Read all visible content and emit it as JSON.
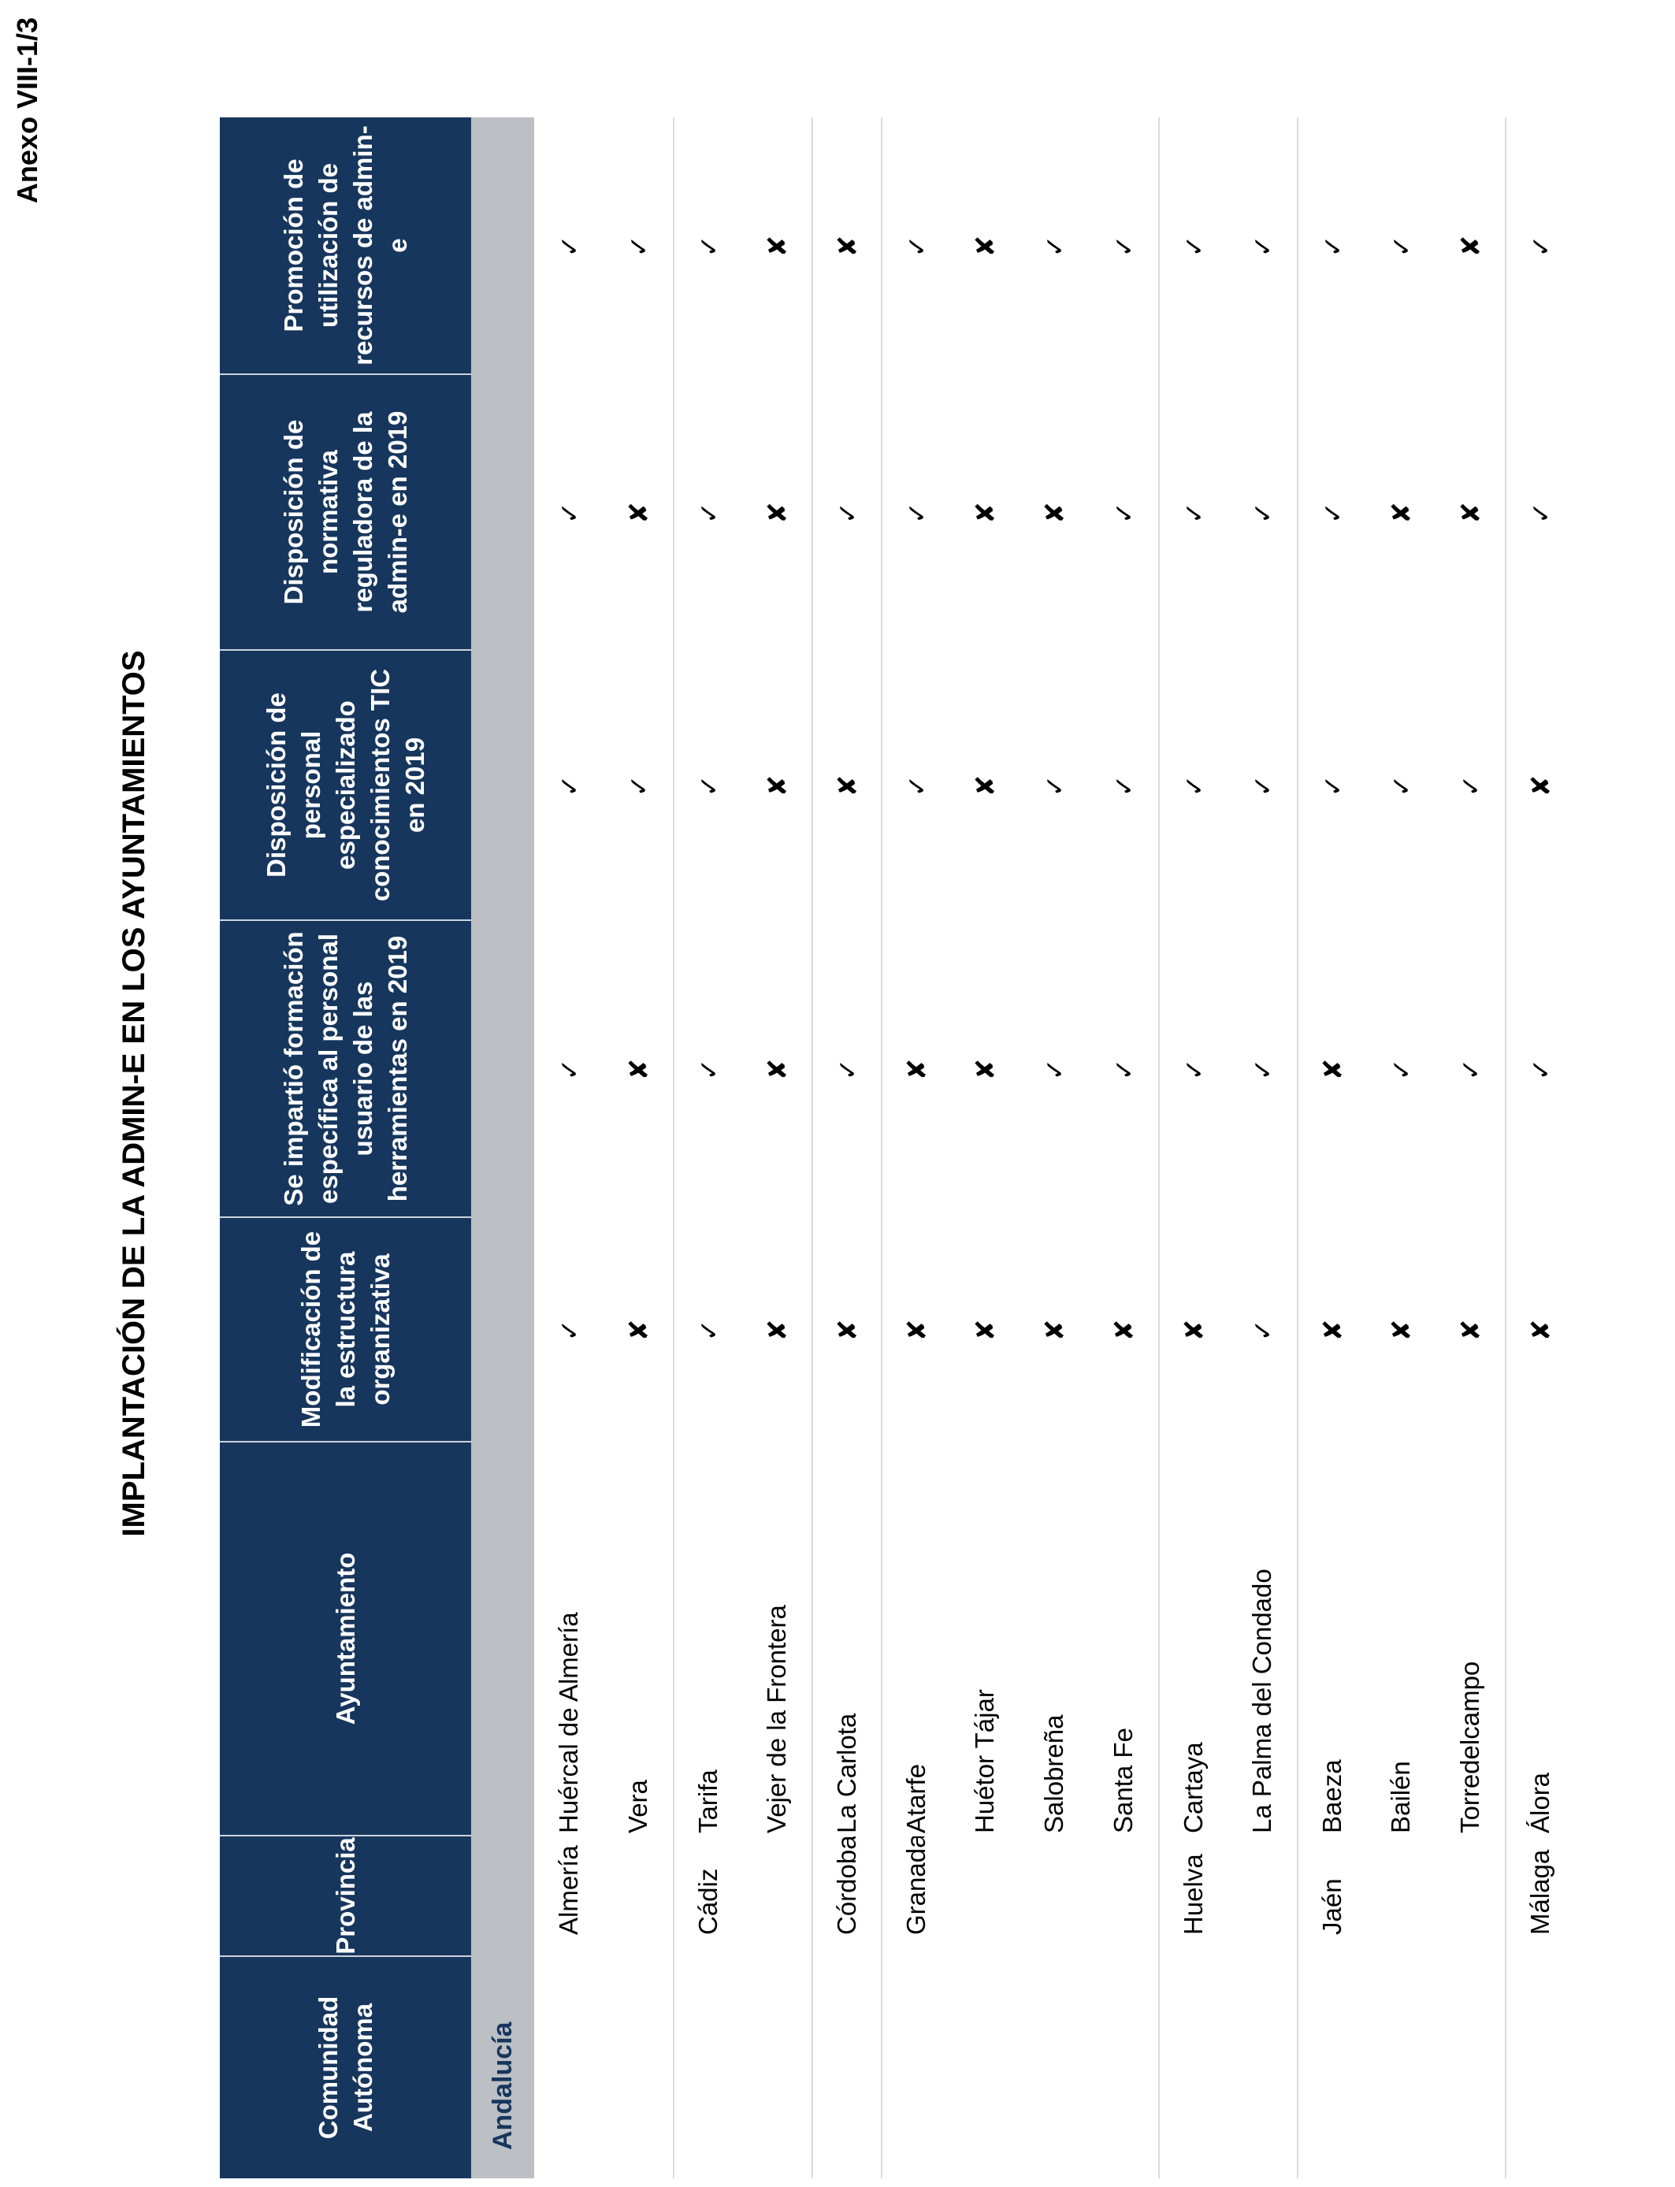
{
  "page": {
    "annex_label": "Anexo VIII-1/3",
    "title": "IMPLANTACIÓN DE LA ADMIN-E EN LOS AYUNTAMIENTOS"
  },
  "table": {
    "headers": [
      "Comunidad Autónoma",
      "Provincia",
      "Ayuntamiento",
      "Modificación de la estructura organizativa",
      "Se impartió formación específica al personal usuario de las herramientas en 2019",
      "Disposición de personal especializado conocimientos TIC en 2019",
      "Disposición de normativa reguladora de la admin-e en 2019",
      "Promoción de utilización de recursos de admin-e"
    ],
    "comunidad": "Andalucía",
    "check_icon": "✓",
    "cross_icon": "✘",
    "colors": {
      "header_bg": "#17365D",
      "band_bg": "#BCC0C4",
      "check": "#0CA750",
      "cross": "#C00F0F"
    },
    "rows": [
      {
        "province": "Almería",
        "municipality": "Huércal de Almería",
        "new_group": false,
        "marks": [
          "check",
          "check",
          "check",
          "check",
          "check"
        ]
      },
      {
        "province": "",
        "municipality": "Vera",
        "new_group": false,
        "marks": [
          "cross",
          "cross",
          "check",
          "cross",
          "check"
        ]
      },
      {
        "province": "Cádiz",
        "municipality": "Tarifa",
        "new_group": true,
        "marks": [
          "check",
          "check",
          "check",
          "check",
          "check"
        ]
      },
      {
        "province": "",
        "municipality": "Vejer de la Frontera",
        "new_group": false,
        "marks": [
          "cross",
          "cross",
          "cross",
          "cross",
          "cross"
        ]
      },
      {
        "province": "Córdoba",
        "municipality": "La Carlota",
        "new_group": true,
        "marks": [
          "cross",
          "check",
          "cross",
          "check",
          "cross"
        ]
      },
      {
        "province": "Granada",
        "municipality": "Atarfe",
        "new_group": true,
        "marks": [
          "cross",
          "cross",
          "check",
          "check",
          "check"
        ]
      },
      {
        "province": "",
        "municipality": "Huétor Tájar",
        "new_group": false,
        "marks": [
          "cross",
          "cross",
          "cross",
          "cross",
          "cross"
        ]
      },
      {
        "province": "",
        "municipality": "Salobreña",
        "new_group": false,
        "marks": [
          "cross",
          "check",
          "check",
          "cross",
          "check"
        ]
      },
      {
        "province": "",
        "municipality": "Santa Fe",
        "new_group": false,
        "marks": [
          "cross",
          "check",
          "check",
          "check",
          "check"
        ]
      },
      {
        "province": "Huelva",
        "municipality": "Cartaya",
        "new_group": true,
        "marks": [
          "cross",
          "check",
          "check",
          "check",
          "check"
        ]
      },
      {
        "province": "",
        "municipality": "La Palma del Condado",
        "new_group": false,
        "marks": [
          "check",
          "check",
          "check",
          "check",
          "check"
        ]
      },
      {
        "province": "Jaén",
        "municipality": "Baeza",
        "new_group": true,
        "marks": [
          "cross",
          "cross",
          "check",
          "check",
          "check"
        ]
      },
      {
        "province": "",
        "municipality": "Bailén",
        "new_group": false,
        "marks": [
          "cross",
          "check",
          "check",
          "cross",
          "check"
        ]
      },
      {
        "province": "",
        "municipality": "Torredelcampo",
        "new_group": false,
        "marks": [
          "cross",
          "check",
          "check",
          "cross",
          "cross"
        ]
      },
      {
        "province": "Málaga",
        "municipality": "Álora",
        "new_group": true,
        "marks": [
          "cross",
          "check",
          "cross",
          "check",
          "check"
        ]
      }
    ]
  }
}
